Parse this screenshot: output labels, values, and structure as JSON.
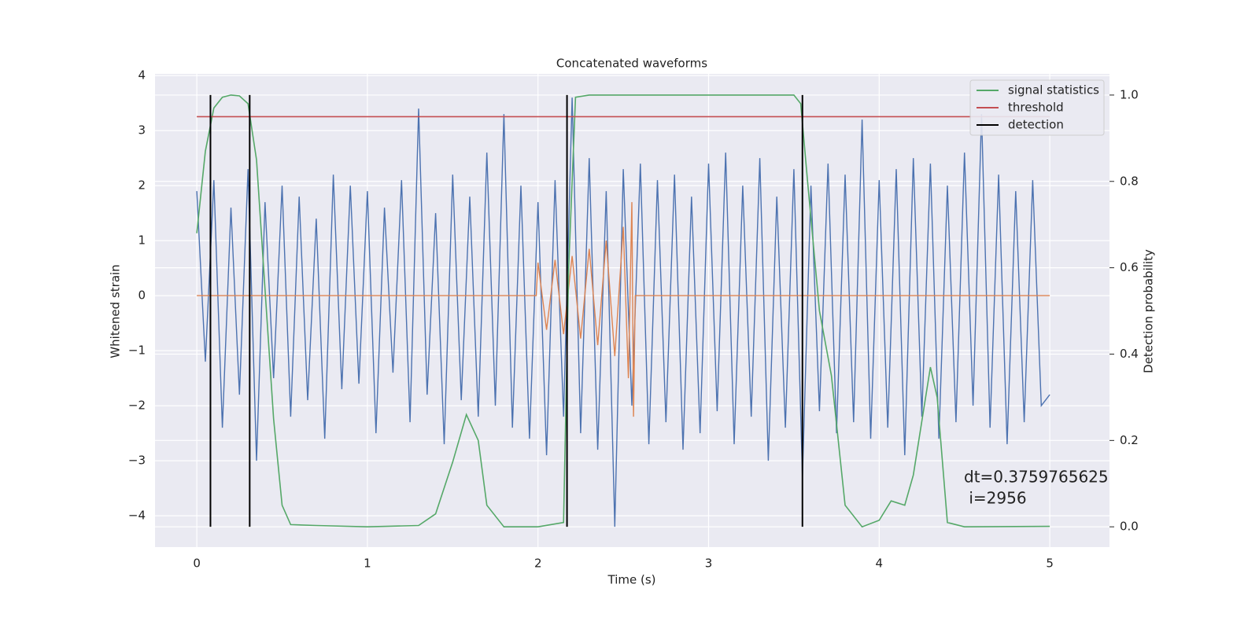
{
  "chart_data": {
    "type": "line",
    "title": "Concatenated waveforms",
    "xlabel": "Time (s)",
    "ylabel": "Whitened strain",
    "y2label": "Detection probability",
    "xlim": [
      -0.245,
      5.35
    ],
    "ylim": [
      -4.57,
      4.03
    ],
    "y2lim": [
      -0.047,
      1.049
    ],
    "xticks": [
      0,
      1,
      2,
      3,
      4,
      5
    ],
    "yticks": [
      {
        "value": -4,
        "label": "−4"
      },
      {
        "value": -3,
        "label": "−3"
      },
      {
        "value": -2,
        "label": "−2"
      },
      {
        "value": -1,
        "label": "−1"
      },
      0,
      1,
      2,
      3,
      4
    ],
    "y2ticks": [
      {
        "value": 0,
        "label": "0.0"
      },
      {
        "value": 0.2,
        "label": "0.2"
      },
      {
        "value": 0.4,
        "label": "0.4"
      },
      {
        "value": 0.6,
        "label": "0.6"
      },
      {
        "value": 0.8,
        "label": "0.8"
      },
      {
        "value": 1,
        "label": "1.0"
      }
    ],
    "grid": true,
    "legend": "upper right",
    "series": [
      {
        "color": "#4c72b0",
        "x": [
          0,
          0.05,
          0.1,
          0.15,
          0.2,
          0.25,
          0.3,
          0.35,
          0.4,
          0.45,
          0.5,
          0.55,
          0.6,
          0.65,
          0.7,
          0.75,
          0.8,
          0.85,
          0.9,
          0.95,
          1.0,
          1.05,
          1.1,
          1.15,
          1.2,
          1.25,
          1.3,
          1.35,
          1.4,
          1.45,
          1.5,
          1.55,
          1.6,
          1.65,
          1.7,
          1.75,
          1.8,
          1.85,
          1.9,
          1.95,
          2.0,
          2.05,
          2.1,
          2.15,
          2.2,
          2.25,
          2.3,
          2.35,
          2.4,
          2.45,
          2.5,
          2.55,
          2.6,
          2.65,
          2.7,
          2.75,
          2.8,
          2.85,
          2.9,
          2.95,
          3.0,
          3.05,
          3.1,
          3.15,
          3.2,
          3.25,
          3.3,
          3.35,
          3.4,
          3.45,
          3.5,
          3.55,
          3.6,
          3.65,
          3.7,
          3.75,
          3.8,
          3.85,
          3.9,
          3.95,
          4.0,
          4.05,
          4.1,
          4.15,
          4.2,
          4.25,
          4.3,
          4.35,
          4.4,
          4.45,
          4.5,
          4.55,
          4.6,
          4.65,
          4.7,
          4.75,
          4.8,
          4.85,
          4.9,
          4.95,
          5.0
        ],
        "values": [
          1.9,
          -1.2,
          2.1,
          -2.4,
          1.6,
          -1.8,
          2.3,
          -3.0,
          1.7,
          -1.5,
          2.0,
          -2.2,
          1.8,
          -1.9,
          1.4,
          -2.6,
          2.2,
          -1.7,
          2.0,
          -1.6,
          1.9,
          -2.5,
          1.6,
          -1.4,
          2.1,
          -2.3,
          3.4,
          -1.8,
          1.5,
          -2.7,
          2.2,
          -1.9,
          1.8,
          -2.2,
          2.6,
          -2.0,
          3.3,
          -2.4,
          2.0,
          -2.6,
          1.7,
          -2.9,
          2.1,
          -2.2,
          3.6,
          -2.5,
          2.5,
          -2.8,
          1.9,
          -4.2,
          2.3,
          -2.0,
          2.4,
          -2.7,
          2.1,
          -2.3,
          2.2,
          -2.8,
          1.8,
          -2.5,
          2.4,
          -2.1,
          2.6,
          -2.7,
          2.0,
          -2.2,
          2.5,
          -3.0,
          1.8,
          -2.4,
          2.3,
          -3.3,
          2.0,
          -2.1,
          2.4,
          -2.5,
          2.2,
          -2.3,
          3.2,
          -2.6,
          2.1,
          -2.4,
          2.3,
          -2.9,
          2.5,
          -2.2,
          2.4,
          -2.6,
          2.0,
          -2.3,
          2.6,
          -2.0,
          3.3,
          -2.4,
          2.2,
          -2.7,
          1.9,
          -2.3,
          2.1,
          -2.0,
          -1.8
        ]
      },
      {
        "color": "#dd8452",
        "x": [
          0,
          1.99,
          2.0,
          2.05,
          2.1,
          2.15,
          2.2,
          2.25,
          2.3,
          2.35,
          2.4,
          2.45,
          2.5,
          2.53,
          2.55,
          2.56,
          2.57,
          5.0
        ],
        "values": [
          0,
          0,
          0.6,
          -0.62,
          0.65,
          -0.7,
          0.72,
          -0.78,
          0.85,
          -0.9,
          1.0,
          -1.1,
          1.25,
          -1.5,
          1.7,
          -2.2,
          0,
          0
        ]
      },
      {
        "name": "signal statistics",
        "color": "#55a868",
        "axis": "y2",
        "x": [
          0,
          0.05,
          0.1,
          0.15,
          0.2,
          0.25,
          0.3,
          0.35,
          0.4,
          0.45,
          0.5,
          0.55,
          0.7,
          1.0,
          1.3,
          1.4,
          1.5,
          1.58,
          1.65,
          1.7,
          1.8,
          2.0,
          2.15,
          2.18,
          2.22,
          2.3,
          3.5,
          3.54,
          3.58,
          3.65,
          3.72,
          3.8,
          3.9,
          4.0,
          4.07,
          4.15,
          4.2,
          4.3,
          4.34,
          4.4,
          4.5,
          5.0
        ],
        "values": [
          0.68,
          0.87,
          0.97,
          0.995,
          1.0,
          0.998,
          0.98,
          0.85,
          0.55,
          0.25,
          0.05,
          0.005,
          0.003,
          0.0,
          0.003,
          0.03,
          0.15,
          0.26,
          0.2,
          0.05,
          0.0,
          0.0,
          0.01,
          0.6,
          0.995,
          1.0,
          1.0,
          0.98,
          0.8,
          0.5,
          0.35,
          0.05,
          0.0,
          0.015,
          0.06,
          0.05,
          0.12,
          0.37,
          0.3,
          0.01,
          0.0,
          0.001
        ]
      },
      {
        "name": "threshold",
        "color": "#c44e52",
        "axis": "y2",
        "x": [
          0,
          5
        ],
        "values": [
          0.95,
          0.95
        ]
      }
    ],
    "vlines": {
      "name": "detection",
      "color": "#000000",
      "x": [
        0.08,
        0.31,
        2.17,
        3.55
      ],
      "ymin": 0,
      "ymax": 1
    },
    "annotation": [
      "dt=0.3759765625",
      " i=2956"
    ]
  }
}
